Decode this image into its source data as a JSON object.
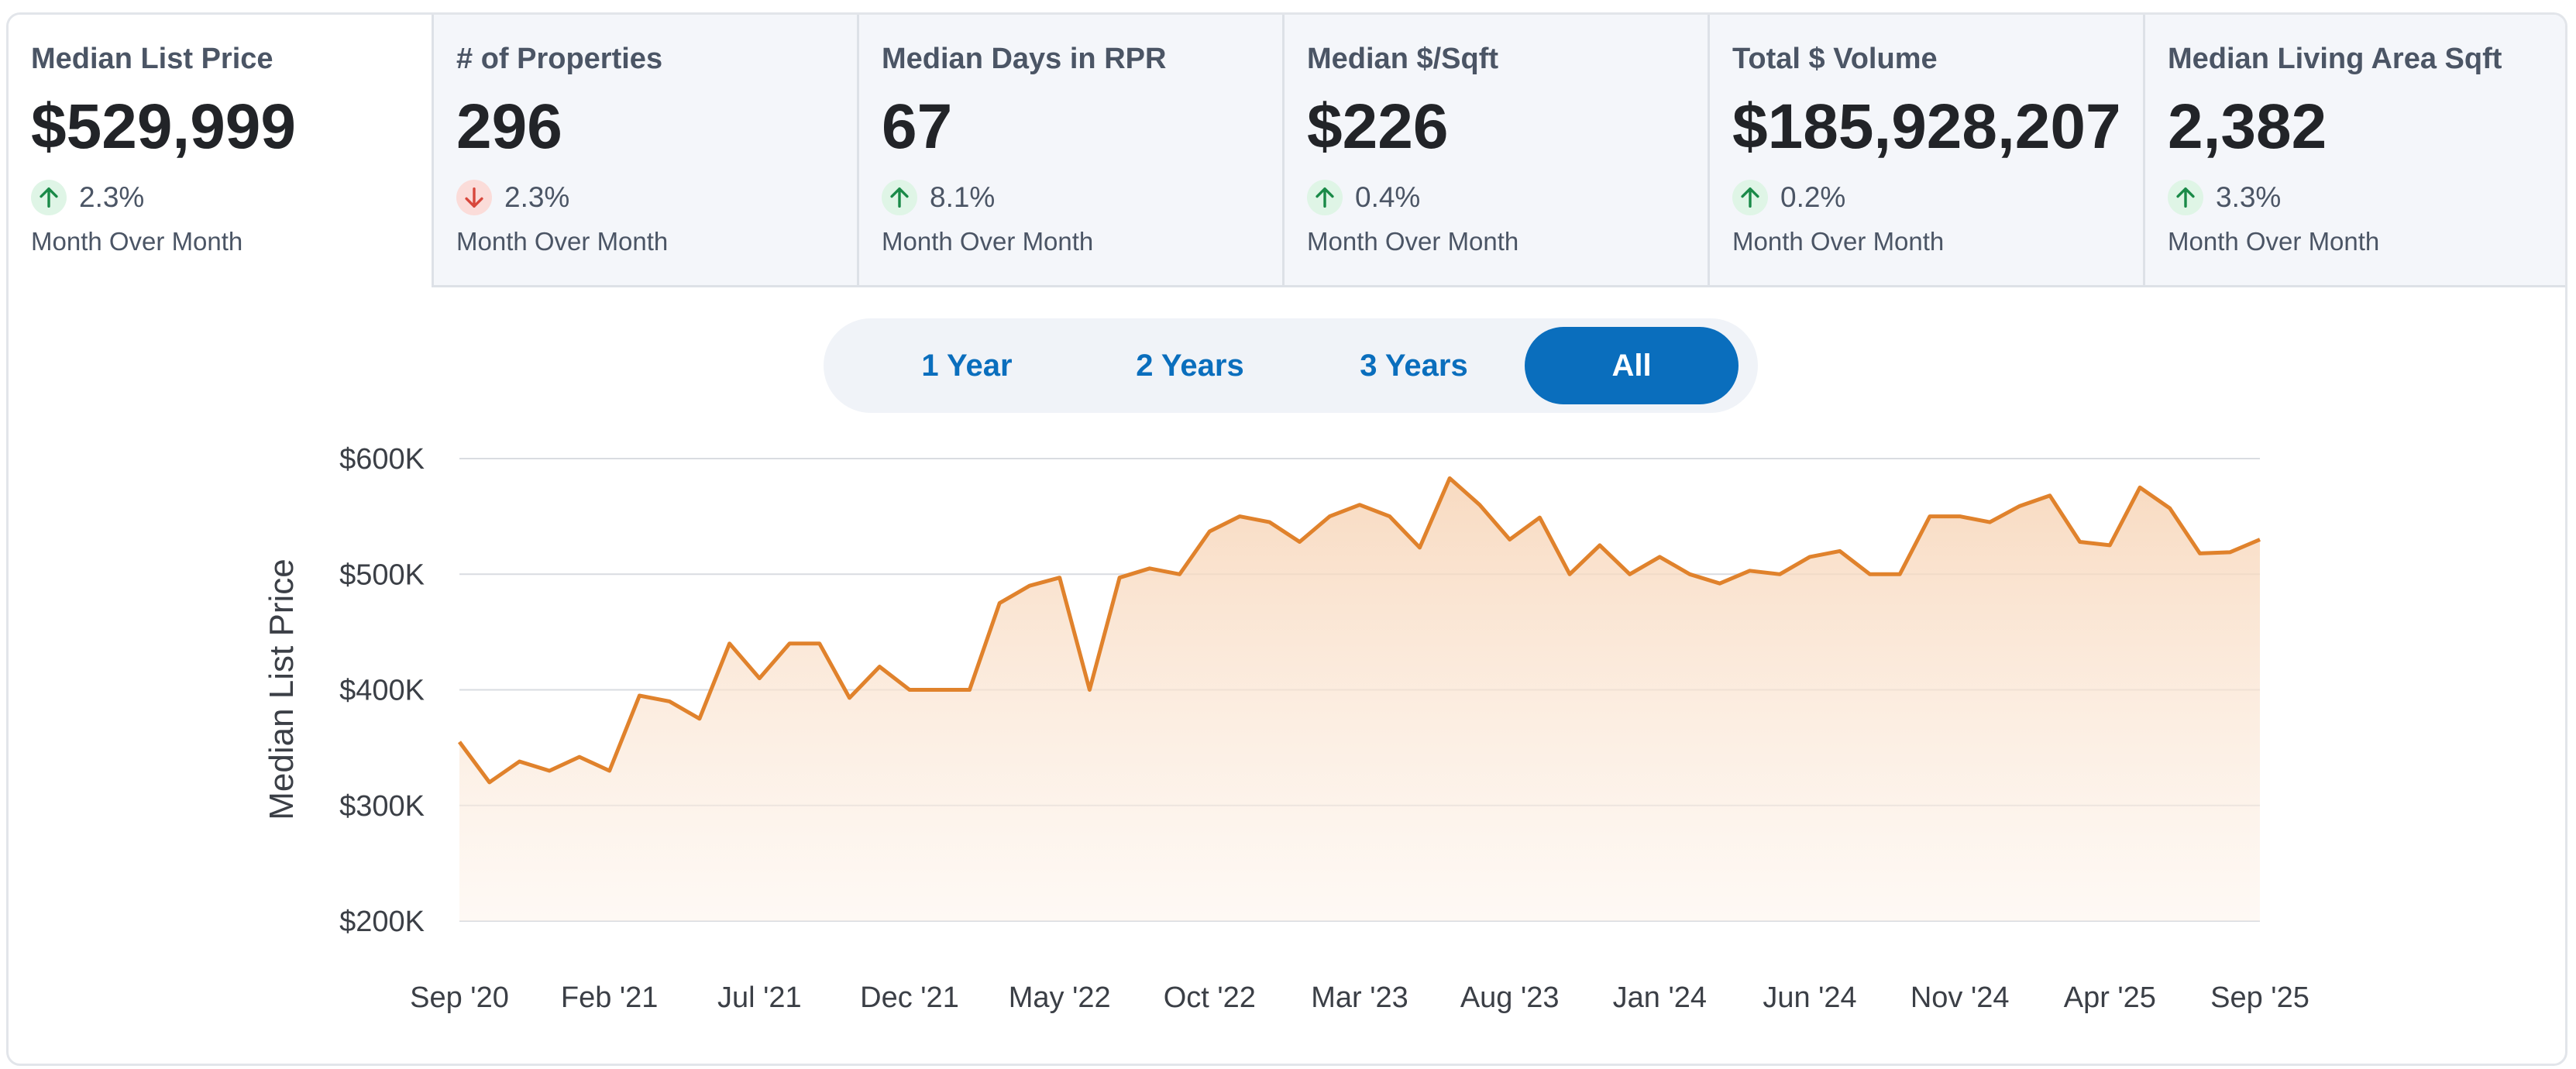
{
  "tabs": [
    {
      "title": "Median List Price",
      "value": "$529,999",
      "direction": "up",
      "change": "2.3%",
      "period": "Month Over Month"
    },
    {
      "title": "# of Properties",
      "value": "296",
      "direction": "down",
      "change": "2.3%",
      "period": "Month Over Month"
    },
    {
      "title": "Median Days in RPR",
      "value": "67",
      "direction": "up",
      "change": "8.1%",
      "period": "Month Over Month"
    },
    {
      "title": "Median $/Sqft",
      "value": "$226",
      "direction": "up",
      "change": "0.4%",
      "period": "Month Over Month"
    },
    {
      "title": "Total $ Volume",
      "value": "$185,928,207",
      "direction": "up",
      "change": "0.2%",
      "period": "Month Over Month"
    },
    {
      "title": "Median Living Area Sqft",
      "value": "2,382",
      "direction": "up",
      "change": "3.3%",
      "period": "Month Over Month"
    }
  ],
  "range_selector": {
    "options": [
      "1 Year",
      "2 Years",
      "3 Years",
      "All"
    ],
    "selected": "All"
  },
  "colors": {
    "line": "#e0822c",
    "area": "#f9dcc3",
    "up": "#1a8a48",
    "down": "#d8473c",
    "accent": "#0a6ebd"
  },
  "chart_data": {
    "type": "area",
    "ylabel": "Median List Price",
    "ylim": [
      200000,
      600000
    ],
    "yticks": [
      200000,
      300000,
      400000,
      500000,
      600000
    ],
    "ytick_labels": [
      "$200K",
      "$300K",
      "$400K",
      "$500K",
      "$600K"
    ],
    "xtick_labels": [
      "Sep '20",
      "Feb '21",
      "Jul '21",
      "Dec '21",
      "May '22",
      "Oct '22",
      "Mar '23",
      "Aug '23",
      "Jan '24",
      "Jun '24",
      "Nov '24",
      "Apr '25",
      "Sep '25"
    ],
    "series": [
      {
        "values": [
          355000,
          320000,
          338000,
          330000,
          342000,
          330000,
          395000,
          390000,
          375000,
          440000,
          410000,
          440000,
          440000,
          393000,
          420000,
          400000,
          400000,
          400000,
          475000,
          490000,
          497000,
          400000,
          497000,
          505000,
          500000,
          537000,
          550000,
          545000,
          528000,
          550000,
          560000,
          550000,
          523000,
          583000,
          560000,
          530000,
          549000,
          500000,
          525000,
          500000,
          515000,
          500000,
          492000,
          503000,
          500000,
          515000,
          520000,
          500000,
          500000,
          550000,
          550000,
          545000,
          559000,
          568000,
          528000,
          525000,
          575000,
          557000,
          518000,
          519000,
          530000
        ]
      }
    ]
  }
}
